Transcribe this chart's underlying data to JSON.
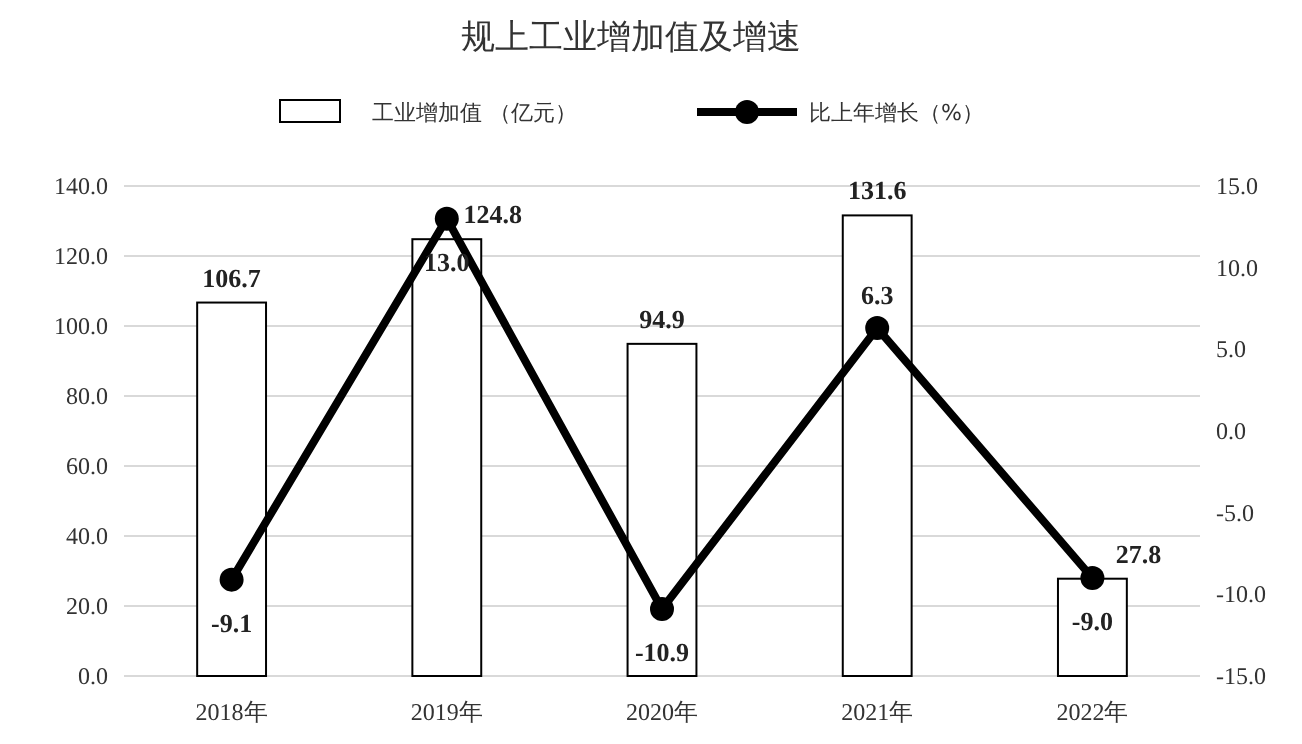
{
  "chart_data": {
    "type": "bar",
    "title": "规上工业增加值及增速",
    "categories": [
      "2018年",
      "2019年",
      "2020年",
      "2021年",
      "2022年"
    ],
    "series": [
      {
        "name": "工业增加值 （亿元）",
        "color": "#ffffff",
        "values": [
          106.7,
          124.8,
          94.9,
          131.6,
          27.8
        ]
      },
      {
        "name": "比上年增长（%）",
        "type": "line",
        "axis": "y2",
        "color": "#000000",
        "marker": "circle",
        "values": [
          -9.1,
          13.0,
          -10.9,
          6.3,
          -9.0
        ],
        "value_labels": [
          "-9.1",
          "13.0",
          "-10.9",
          "6.3",
          "-9.0"
        ]
      }
    ],
    "ylim": [
      0,
      140
    ],
    "yticks": [
      {
        "value": 0,
        "label": "0.0"
      },
      {
        "value": 20,
        "label": "20.0"
      },
      {
        "value": 40,
        "label": "40.0"
      },
      {
        "value": 60,
        "label": "60.0"
      },
      {
        "value": 80,
        "label": "80.0"
      },
      {
        "value": 100,
        "label": "100.0"
      },
      {
        "value": 120,
        "label": "120.0"
      },
      {
        "value": 140,
        "label": "140.0"
      }
    ],
    "y2lim": [
      -15,
      15
    ],
    "y2ticks": [
      {
        "value": -15,
        "label": "-15.0"
      },
      {
        "value": -10,
        "label": "-10.0"
      },
      {
        "value": -5,
        "label": "-5.0"
      },
      {
        "value": 0,
        "label": "0.0"
      },
      {
        "value": 5,
        "label": "5.0"
      },
      {
        "value": 10,
        "label": "10.0"
      },
      {
        "value": 15,
        "label": "15.0"
      }
    ],
    "grid": "y",
    "legend": "top",
    "data_labels": true
  }
}
